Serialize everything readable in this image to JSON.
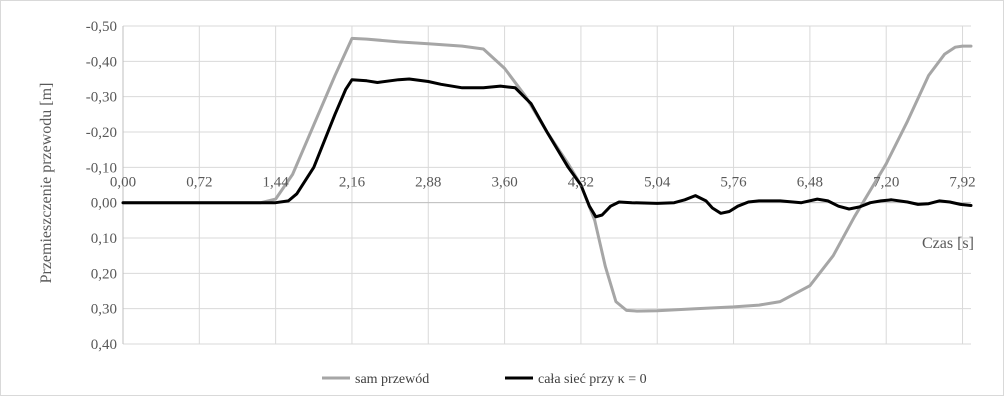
{
  "chart_data": {
    "type": "line",
    "xlabel": "Czas [s]",
    "ylabel": "Przemieszczenie przewodu [m]",
    "xlim": [
      0,
      8.0
    ],
    "ylim": [
      0.4,
      -0.5
    ],
    "y_reversed": true,
    "grid": true,
    "legend_position": "bottom",
    "x_ticks": [
      0,
      0.72,
      1.44,
      2.16,
      2.88,
      3.6,
      4.32,
      5.04,
      5.76,
      6.48,
      7.2,
      7.92
    ],
    "x_tick_labels": [
      "0,00",
      "0,72",
      "1,44",
      "2,16",
      "2,88",
      "3,60",
      "4,32",
      "5,04",
      "5,76",
      "6,48",
      "7,20",
      "7,92"
    ],
    "y_ticks": [
      -0.5,
      -0.4,
      -0.3,
      -0.2,
      -0.1,
      0.0,
      0.1,
      0.2,
      0.3,
      0.4
    ],
    "y_tick_labels": [
      "-0,50",
      "-0,40",
      "-0,30",
      "-0,20",
      "-0,10",
      "0,00",
      "0,10",
      "0,20",
      "0,30",
      "0,40"
    ],
    "series": [
      {
        "name": "sam przewód",
        "color": "#a6a6a6",
        "points": [
          [
            0.0,
            0.0
          ],
          [
            0.72,
            0.0
          ],
          [
            1.3,
            0.0
          ],
          [
            1.44,
            -0.01
          ],
          [
            1.6,
            -0.08
          ],
          [
            1.8,
            -0.22
          ],
          [
            2.0,
            -0.36
          ],
          [
            2.16,
            -0.465
          ],
          [
            2.3,
            -0.463
          ],
          [
            2.6,
            -0.455
          ],
          [
            2.88,
            -0.45
          ],
          [
            3.2,
            -0.443
          ],
          [
            3.4,
            -0.435
          ],
          [
            3.6,
            -0.38
          ],
          [
            3.8,
            -0.3
          ],
          [
            4.0,
            -0.2
          ],
          [
            4.2,
            -0.11
          ],
          [
            4.32,
            -0.05
          ],
          [
            4.45,
            0.05
          ],
          [
            4.55,
            0.18
          ],
          [
            4.65,
            0.28
          ],
          [
            4.75,
            0.305
          ],
          [
            4.85,
            0.307
          ],
          [
            5.04,
            0.306
          ],
          [
            5.4,
            0.3
          ],
          [
            5.76,
            0.295
          ],
          [
            6.0,
            0.29
          ],
          [
            6.2,
            0.28
          ],
          [
            6.48,
            0.235
          ],
          [
            6.7,
            0.15
          ],
          [
            6.9,
            0.04
          ],
          [
            7.1,
            -0.06
          ],
          [
            7.2,
            -0.11
          ],
          [
            7.4,
            -0.23
          ],
          [
            7.6,
            -0.36
          ],
          [
            7.75,
            -0.42
          ],
          [
            7.85,
            -0.44
          ],
          [
            7.92,
            -0.443
          ],
          [
            8.0,
            -0.443
          ]
        ]
      },
      {
        "name": "cała sieć przy κ = 0",
        "color": "#000000",
        "points": [
          [
            0.0,
            0.0
          ],
          [
            1.44,
            0.0
          ],
          [
            1.56,
            -0.005
          ],
          [
            1.64,
            -0.025
          ],
          [
            1.8,
            -0.1
          ],
          [
            2.0,
            -0.25
          ],
          [
            2.1,
            -0.32
          ],
          [
            2.16,
            -0.348
          ],
          [
            2.3,
            -0.345
          ],
          [
            2.4,
            -0.34
          ],
          [
            2.6,
            -0.348
          ],
          [
            2.7,
            -0.35
          ],
          [
            2.88,
            -0.343
          ],
          [
            3.0,
            -0.335
          ],
          [
            3.2,
            -0.325
          ],
          [
            3.4,
            -0.325
          ],
          [
            3.56,
            -0.33
          ],
          [
            3.7,
            -0.325
          ],
          [
            3.85,
            -0.28
          ],
          [
            4.0,
            -0.2
          ],
          [
            4.2,
            -0.1
          ],
          [
            4.32,
            -0.05
          ],
          [
            4.4,
            0.01
          ],
          [
            4.46,
            0.04
          ],
          [
            4.52,
            0.035
          ],
          [
            4.6,
            0.01
          ],
          [
            4.68,
            -0.002
          ],
          [
            4.8,
            0.0
          ],
          [
            5.04,
            0.002
          ],
          [
            5.2,
            0.0
          ],
          [
            5.3,
            -0.008
          ],
          [
            5.4,
            -0.02
          ],
          [
            5.5,
            -0.005
          ],
          [
            5.56,
            0.015
          ],
          [
            5.64,
            0.03
          ],
          [
            5.72,
            0.025
          ],
          [
            5.8,
            0.01
          ],
          [
            5.9,
            -0.002
          ],
          [
            6.0,
            -0.005
          ],
          [
            6.2,
            -0.005
          ],
          [
            6.4,
            0.0
          ],
          [
            6.55,
            -0.01
          ],
          [
            6.65,
            -0.005
          ],
          [
            6.75,
            0.01
          ],
          [
            6.85,
            0.018
          ],
          [
            6.95,
            0.012
          ],
          [
            7.05,
            0.0
          ],
          [
            7.15,
            -0.005
          ],
          [
            7.25,
            -0.008
          ],
          [
            7.4,
            -0.002
          ],
          [
            7.5,
            0.005
          ],
          [
            7.6,
            0.003
          ],
          [
            7.7,
            -0.005
          ],
          [
            7.8,
            -0.002
          ],
          [
            7.9,
            0.005
          ],
          [
            8.0,
            0.008
          ]
        ]
      }
    ]
  }
}
